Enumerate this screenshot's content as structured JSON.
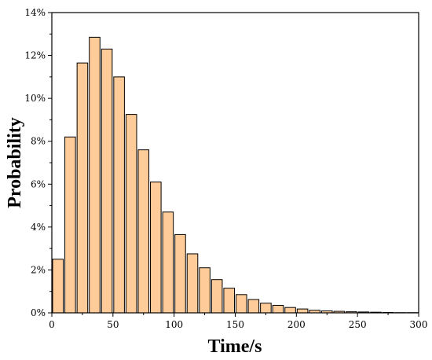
{
  "chart_data": {
    "type": "bar",
    "xlabel": "Time/s",
    "ylabel": "Probability",
    "xlim": [
      0,
      300
    ],
    "ylim": [
      0,
      14
    ],
    "x_ticks": [
      0,
      50,
      100,
      150,
      200,
      250,
      300
    ],
    "x_tick_labels": [
      "0",
      "50",
      "100",
      "150",
      "200",
      "250",
      "300"
    ],
    "y_ticks": [
      0,
      2,
      4,
      6,
      8,
      10,
      12,
      14
    ],
    "y_tick_labels": [
      "0%",
      "2%",
      "4%",
      "6%",
      "8%",
      "10%",
      "12%",
      "14%"
    ],
    "bin_width": 10,
    "x": [
      5,
      15,
      25,
      35,
      45,
      55,
      65,
      75,
      85,
      95,
      105,
      115,
      125,
      135,
      145,
      155,
      165,
      175,
      185,
      195,
      205,
      215,
      225,
      235,
      245,
      255,
      265,
      275,
      285,
      295
    ],
    "values": [
      2.5,
      8.2,
      11.65,
      12.85,
      12.3,
      11.0,
      9.25,
      7.6,
      6.1,
      4.7,
      3.65,
      2.75,
      2.1,
      1.55,
      1.15,
      0.85,
      0.62,
      0.45,
      0.35,
      0.25,
      0.18,
      0.12,
      0.09,
      0.07,
      0.05,
      0.04,
      0.03,
      0.02,
      0.01,
      0.01
    ],
    "bar_color": "#FFCC99",
    "edge_color": "#000000",
    "grid": false
  }
}
